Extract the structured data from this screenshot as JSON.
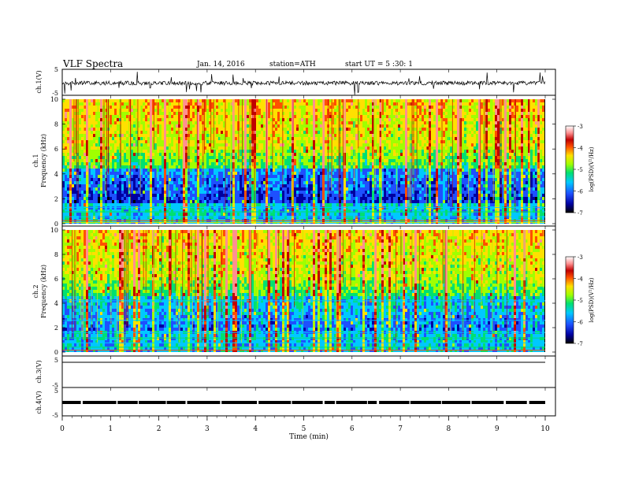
{
  "header": {
    "title": "VLF Spectra",
    "date": "Jan. 14, 2016",
    "station": "station=ATH",
    "start": "start UT =  5 :30: 1"
  },
  "chart_data": {
    "type": "heatmap",
    "title": "VLF Spectra",
    "xlabel": "Time (min)",
    "xlim": [
      0,
      10
    ],
    "x_ticks": [
      "0",
      "1",
      "2",
      "3",
      "4",
      "5",
      "6",
      "7",
      "8",
      "9",
      "10"
    ],
    "panels": [
      {
        "id": "ch1-waveform",
        "type": "line",
        "ylabel": "ch.1(V)",
        "ylim": [
          -5,
          5
        ],
        "y_ticks": [
          "5",
          "-5"
        ]
      },
      {
        "id": "ch1-spectrogram",
        "type": "heatmap",
        "ylabel_top": "ch.1",
        "ylabel": "Frequency (kHz)",
        "ylim": [
          0,
          10
        ],
        "y_ticks": [
          "0",
          "2",
          "4",
          "6",
          "8",
          "10"
        ]
      },
      {
        "id": "ch2-spectrogram",
        "type": "heatmap",
        "ylabel_top": "ch.2",
        "ylabel": "Frequency (kHz)",
        "ylim": [
          0,
          10
        ],
        "y_ticks": [
          "0",
          "2",
          "4",
          "6",
          "8",
          "10"
        ]
      },
      {
        "id": "ch3-waveform",
        "type": "line",
        "ylabel": "ch.3(V)",
        "ylim": [
          -5,
          5
        ],
        "y_ticks": [
          "5",
          "-5"
        ]
      },
      {
        "id": "ch4-waveform",
        "type": "line",
        "ylabel": "ch.4(V)",
        "ylim": [
          -5,
          5
        ],
        "y_ticks": [
          "5",
          "-5"
        ]
      }
    ],
    "colorbar": {
      "label": "log(PSD)(V²/Hz)",
      "range": [
        -7,
        -3
      ],
      "ticks": [
        "-3",
        "-4",
        "-5",
        "-6",
        "-7"
      ],
      "colors": [
        "#000000",
        "#0000a0",
        "#1e50ff",
        "#00c8ff",
        "#00e070",
        "#a0ff00",
        "#ffe000",
        "#ff5000",
        "#c00000",
        "#ff9090",
        "#ffffff"
      ]
    }
  }
}
